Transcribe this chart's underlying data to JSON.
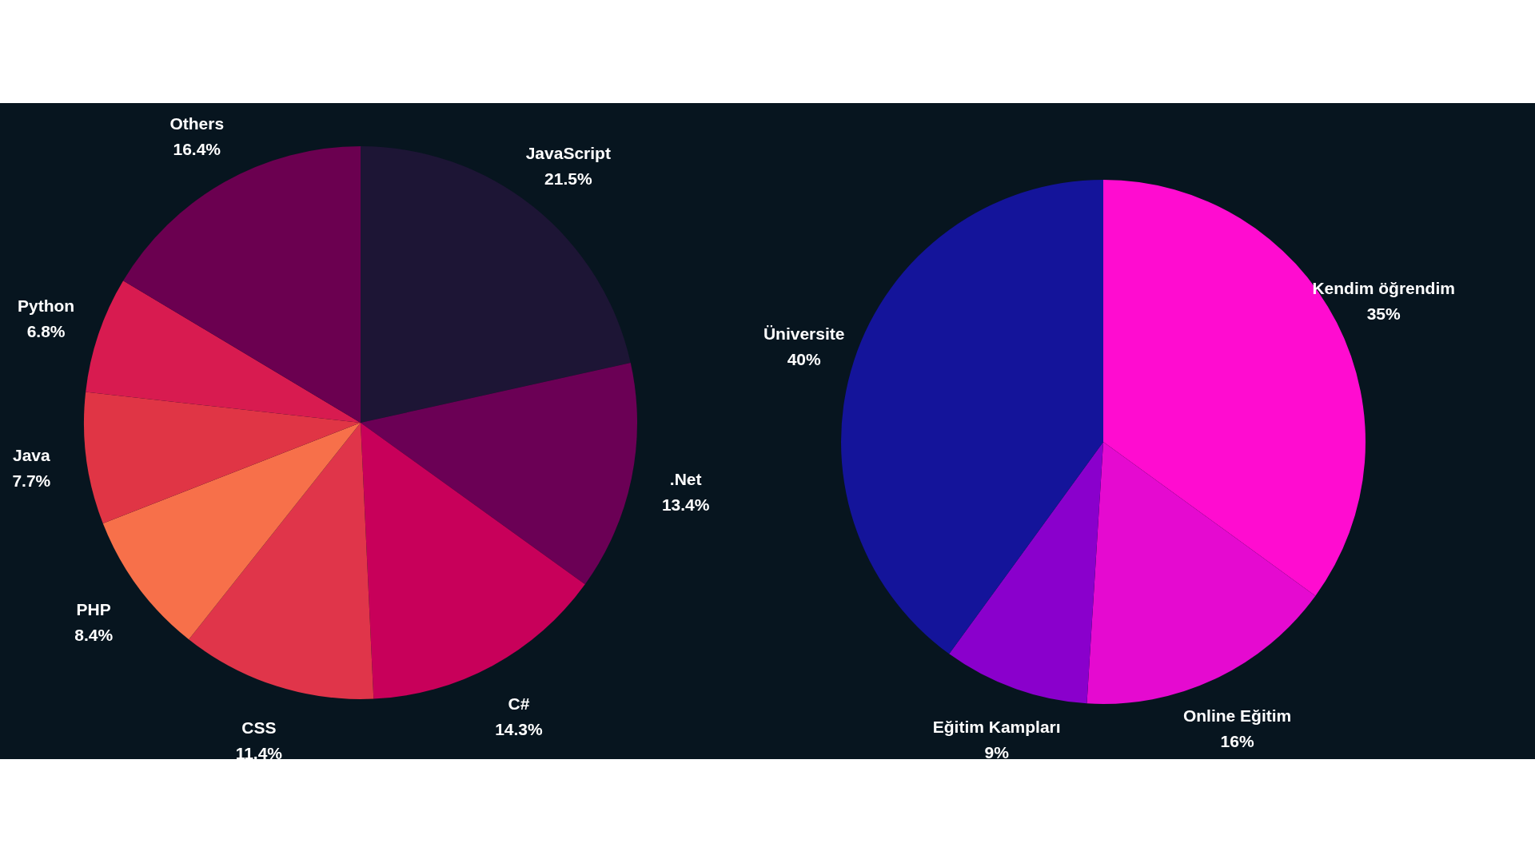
{
  "chart_data": [
    {
      "type": "pie",
      "categories": [
        "JavaScript",
        ".Net",
        "C#",
        "CSS",
        "PHP",
        "Java",
        "Python",
        "Others"
      ],
      "values": [
        21.5,
        13.4,
        14.3,
        11.4,
        8.4,
        7.7,
        6.8,
        16.4
      ],
      "colors": [
        "#1d1535",
        "#6b0055",
        "#c8005a",
        "#e0354a",
        "#f7704a",
        "#e03545",
        "#d81b50",
        "#6b0050"
      ],
      "value_labels": [
        "21.5%",
        "13.4%",
        "14.3%",
        "11.4%",
        "8.4%",
        "7.7%",
        "6.8%",
        "16.4%"
      ]
    },
    {
      "type": "pie",
      "categories": [
        "Kendim öğrendim",
        "Online Eğitim",
        "Eğitim Kampları",
        "Üniversite"
      ],
      "values": [
        35,
        16,
        9,
        40
      ],
      "colors": [
        "#ff0cd0",
        "#e50ad0",
        "#8a00cc",
        "#14149a"
      ],
      "value_labels": [
        "35%",
        "16%",
        "9%",
        "40%"
      ]
    }
  ]
}
